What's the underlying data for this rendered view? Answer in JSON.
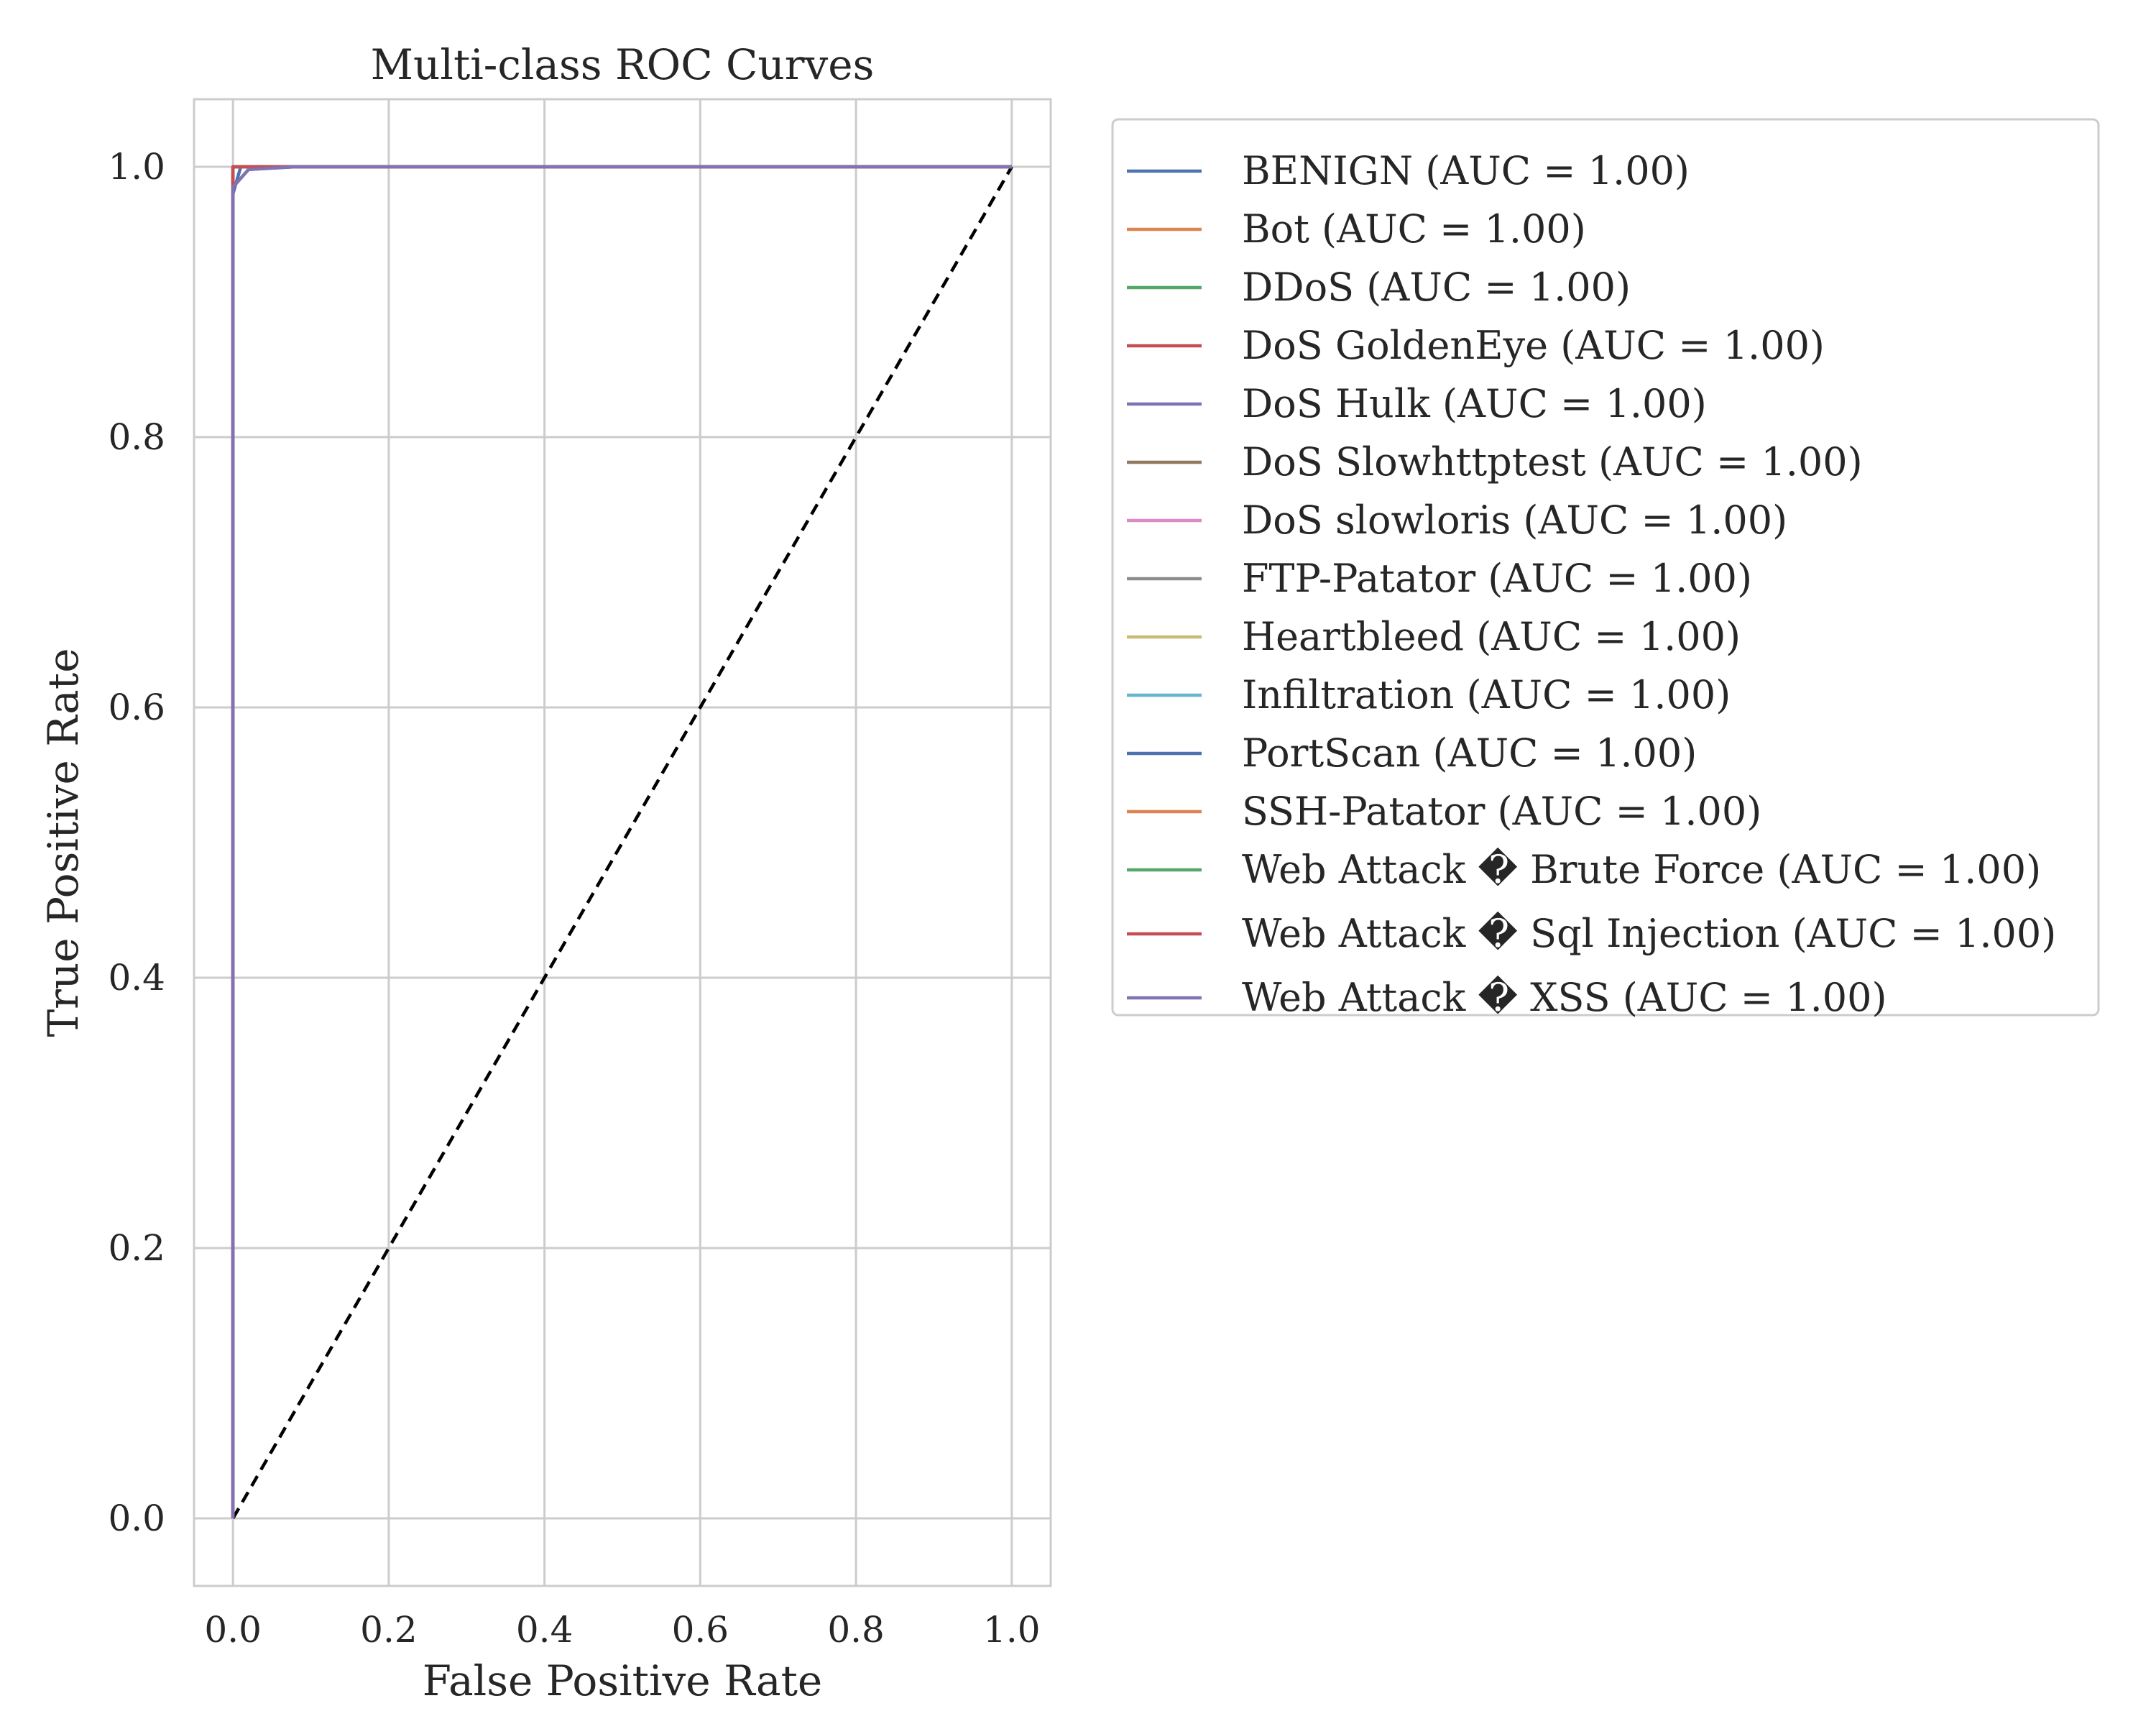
{
  "chart_data": {
    "type": "line",
    "title": "Multi-class ROC Curves",
    "xlabel": "False Positive Rate",
    "ylabel": "True Positive Rate",
    "xlim": [
      -0.05,
      1.05
    ],
    "ylim": [
      -0.05,
      1.05
    ],
    "x_ticks": [
      "0.0",
      "0.2",
      "0.4",
      "0.6",
      "0.8",
      "1.0"
    ],
    "y_ticks": [
      "0.0",
      "0.2",
      "0.4",
      "0.6",
      "0.8",
      "1.0"
    ],
    "grid": true,
    "legend_placement": "outside-right",
    "reference_line": {
      "x": [
        0,
        1
      ],
      "y": [
        0,
        1
      ],
      "style": "dashed",
      "color": "#000000"
    },
    "series": [
      {
        "name": "BENIGN (AUC = 1.00)",
        "color": "#4c72b0",
        "x": [
          0,
          0.0,
          0.01,
          1.0
        ],
        "y": [
          0,
          0.98,
          1.0,
          1.0
        ]
      },
      {
        "name": "Bot (AUC = 1.00)",
        "color": "#dd8452",
        "x": [
          0,
          0.0,
          1.0
        ],
        "y": [
          0,
          1.0,
          1.0
        ]
      },
      {
        "name": "DDoS (AUC = 1.00)",
        "color": "#55a868",
        "x": [
          0,
          0.0,
          1.0
        ],
        "y": [
          0,
          1.0,
          1.0
        ]
      },
      {
        "name": "DoS GoldenEye (AUC = 1.00)",
        "color": "#c44e52",
        "x": [
          0,
          0.0,
          0.0,
          1.0
        ],
        "y": [
          0,
          0.98,
          1.0,
          1.0
        ]
      },
      {
        "name": "DoS Hulk (AUC = 1.00)",
        "color": "#8172b3",
        "x": [
          0,
          0.0,
          0.02,
          0.08,
          1.0
        ],
        "y": [
          0,
          0.985,
          0.998,
          1.0,
          1.0
        ]
      },
      {
        "name": "DoS Slowhttptest (AUC = 1.00)",
        "color": "#937860",
        "x": [
          0,
          0.0,
          1.0
        ],
        "y": [
          0,
          1.0,
          1.0
        ]
      },
      {
        "name": "DoS slowloris (AUC = 1.00)",
        "color": "#da8bc3",
        "x": [
          0,
          0.0,
          1.0
        ],
        "y": [
          0,
          1.0,
          1.0
        ]
      },
      {
        "name": "FTP-Patator (AUC = 1.00)",
        "color": "#8c8c8c",
        "x": [
          0,
          0.0,
          1.0
        ],
        "y": [
          0,
          1.0,
          1.0
        ]
      },
      {
        "name": "Heartbleed (AUC = 1.00)",
        "color": "#ccb974",
        "x": [
          0,
          0.0,
          1.0
        ],
        "y": [
          0,
          1.0,
          1.0
        ]
      },
      {
        "name": "Infiltration (AUC = 1.00)",
        "color": "#64b5cd",
        "x": [
          0,
          0.0,
          1.0
        ],
        "y": [
          0,
          1.0,
          1.0
        ]
      },
      {
        "name": "PortScan (AUC = 1.00)",
        "color": "#4c72b0",
        "x": [
          0,
          0.0,
          1.0
        ],
        "y": [
          0,
          1.0,
          1.0
        ]
      },
      {
        "name": "SSH-Patator (AUC = 1.00)",
        "color": "#dd8452",
        "x": [
          0,
          0.0,
          1.0
        ],
        "y": [
          0,
          1.0,
          1.0
        ]
      },
      {
        "name": "Web Attack � Brute Force (AUC = 1.00)",
        "color": "#55a868",
        "x": [
          0,
          0.0,
          1.0
        ],
        "y": [
          0,
          1.0,
          1.0
        ]
      },
      {
        "name": "Web Attack � Sql Injection (AUC = 1.00)",
        "color": "#c44e52",
        "x": [
          0,
          0.0,
          0.0,
          1.0
        ],
        "y": [
          0,
          0.99,
          1.0,
          1.0
        ]
      },
      {
        "name": "Web Attack � XSS (AUC = 1.00)",
        "color": "#8172b3",
        "x": [
          0,
          0.0,
          0.02,
          0.08,
          1.0
        ],
        "y": [
          0,
          0.985,
          0.998,
          1.0,
          1.0
        ]
      }
    ]
  }
}
